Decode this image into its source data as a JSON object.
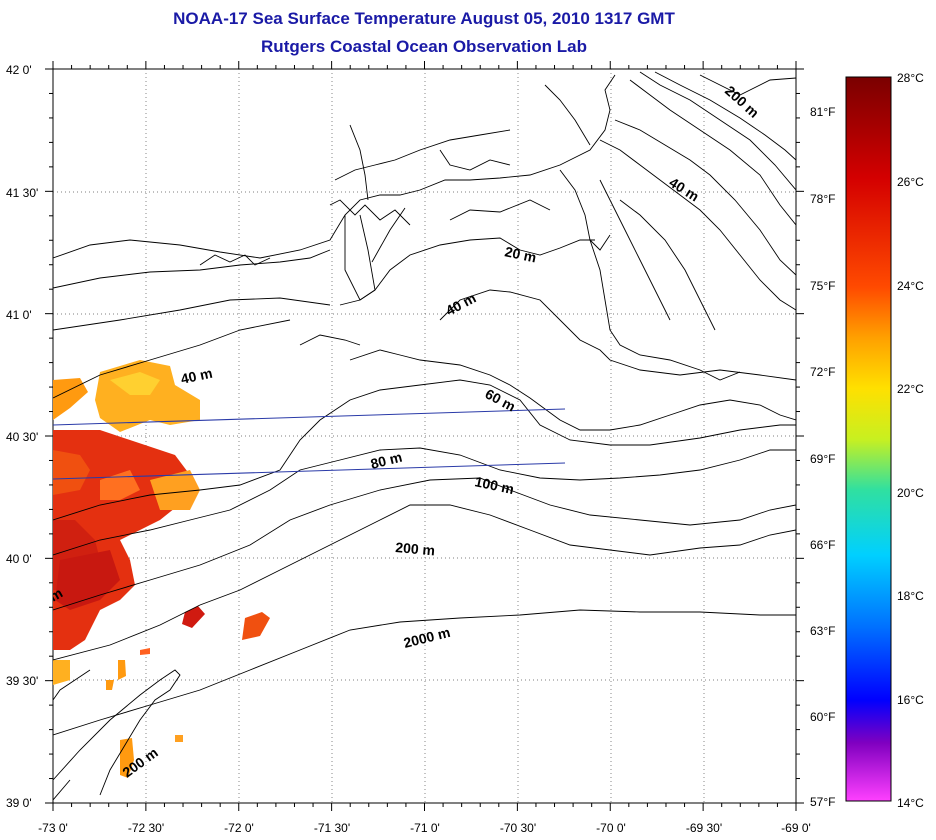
{
  "title": "NOAA-17 Sea Surface Temperature August 05, 2010 1317 GMT",
  "subtitle": "Rutgers Coastal Ocean Observation Lab",
  "map": {
    "lat_labels": [
      "42 0'",
      "41 30'",
      "41 0'",
      "40 30'",
      "40 0'",
      "39 30'",
      "39 0'"
    ],
    "lon_labels": [
      "-73 0'",
      "-72 30'",
      "-72 0'",
      "-71 30'",
      "-71 0'",
      "-70 30'",
      "-70 0'",
      "-69 30'",
      "-69 0'"
    ],
    "contour_labels": [
      "200 m",
      "40 m",
      "20 m",
      "40 m",
      "40 m",
      "60 m",
      "80 m",
      "100 m",
      "200 m",
      "2000 m",
      "200 m",
      "m"
    ]
  },
  "colorbar": {
    "celsius_labels": [
      "28°C",
      "26°C",
      "24°C",
      "22°C",
      "20°C",
      "18°C",
      "16°C",
      "14°C"
    ],
    "fahrenheit_labels": [
      "81°F",
      "78°F",
      "75°F",
      "72°F",
      "69°F",
      "66°F",
      "63°F",
      "60°F",
      "57°F"
    ],
    "gradient_colors": [
      "#7a0000",
      "#d40000",
      "#ff4a00",
      "#ffa000",
      "#ffe000",
      "#c8f020",
      "#30e0a0",
      "#00d0ff",
      "#0070ff",
      "#0000ff",
      "#8000c0",
      "#ff40ff"
    ]
  },
  "colors": {
    "title": "#1a1aa6",
    "coast": "#000000",
    "track_line": "#2a3aa8"
  }
}
